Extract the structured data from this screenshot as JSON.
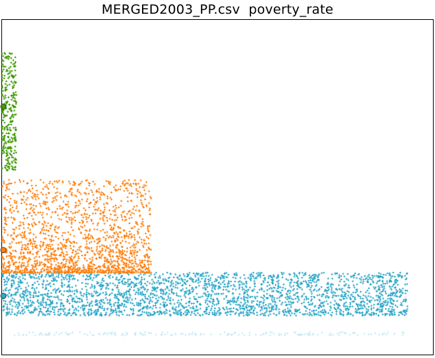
{
  "chart_data": {
    "type": "scatter",
    "title": "MERGED2003_PP.csv  poverty_rate",
    "xlabel": "",
    "ylabel": "",
    "xlim": [
      0,
      630
    ],
    "ylim": [
      0,
      490
    ],
    "xticks": [],
    "yticks": [],
    "grid": false,
    "legend": "none",
    "point_style": "plus",
    "generation": "jittered point clouds; each cloud lists its x range, y range and approximate point count",
    "series": [
      {
        "color": "#2ca6c7",
        "x_range": [
          0,
          593
        ],
        "y_range": [
          57,
          120
        ],
        "count": 2600,
        "marker": {
          "x": 2,
          "y": 86,
          "fill": "#2ca6c7"
        }
      },
      {
        "color": "#c8eaf3",
        "x_range": [
          14,
          592
        ],
        "y_range": [
          28,
          33
        ],
        "count": 180
      },
      {
        "color": "#ff7f0e",
        "x_range": [
          0,
          218
        ],
        "y_range": [
          120,
          256
        ],
        "count": 1700,
        "marker": {
          "x": 2,
          "y": 153,
          "fill": "#ff7f0e"
        }
      },
      {
        "color": "#3d9a00",
        "x_range": [
          0,
          21
        ],
        "y_range": [
          270,
          442
        ],
        "count": 300,
        "marker": {
          "x": 2,
          "y": 363,
          "fill": "#3d9a00"
        }
      }
    ]
  }
}
